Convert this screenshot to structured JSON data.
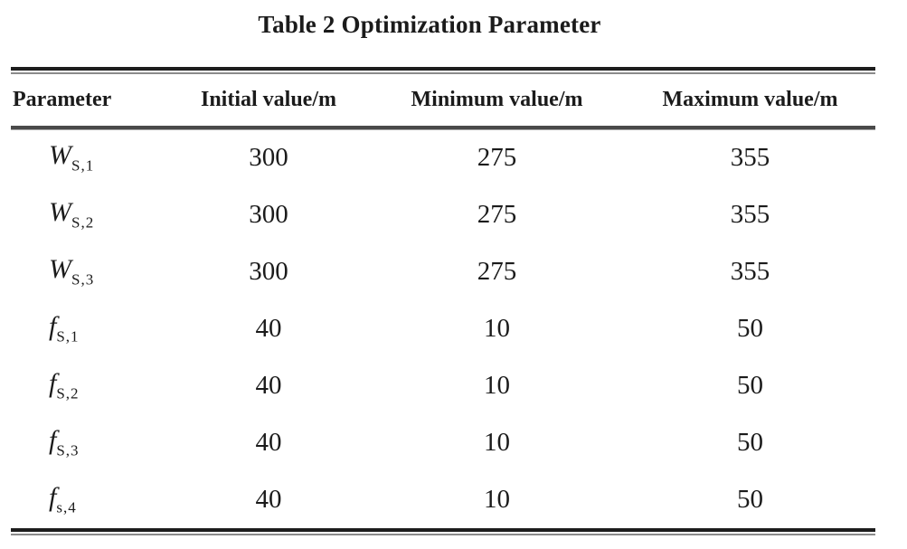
{
  "title": "Table 2 Optimization Parameter",
  "table": {
    "headers": [
      "Parameter",
      "Initial value/m",
      "Minimum value/m",
      "Maximum value/m"
    ],
    "rows": [
      {
        "symbol": "W",
        "subscript": "S,1",
        "initial": "300",
        "min": "275",
        "max": "355"
      },
      {
        "symbol": "W",
        "subscript": "S,2",
        "initial": "300",
        "min": "275",
        "max": "355"
      },
      {
        "symbol": "W",
        "subscript": "S,3",
        "initial": "300",
        "min": "275",
        "max": "355"
      },
      {
        "symbol": "f",
        "subscript": "S,1",
        "initial": "40",
        "min": "10",
        "max": "50"
      },
      {
        "symbol": "f",
        "subscript": "S,2",
        "initial": "40",
        "min": "10",
        "max": "50"
      },
      {
        "symbol": "f",
        "subscript": "S,3",
        "initial": "40",
        "min": "10",
        "max": "50"
      },
      {
        "symbol": "f",
        "subscript": "s,4",
        "initial": "40",
        "min": "10",
        "max": "50"
      }
    ]
  },
  "chart_data": {
    "type": "table",
    "title": "Table 2 Optimization Parameter",
    "columns": [
      "Parameter",
      "Initial value/m",
      "Minimum value/m",
      "Maximum value/m"
    ],
    "rows": [
      [
        "W_{S,1}",
        300,
        275,
        355
      ],
      [
        "W_{S,2}",
        300,
        275,
        355
      ],
      [
        "W_{S,3}",
        300,
        275,
        355
      ],
      [
        "f_{S,1}",
        40,
        10,
        50
      ],
      [
        "f_{S,2}",
        40,
        10,
        50
      ],
      [
        "f_{S,3}",
        40,
        10,
        50
      ],
      [
        "f_{s,4}",
        40,
        10,
        50
      ]
    ]
  },
  "colors": {
    "background": "#ffffff",
    "text": "#1b1b1b",
    "rule_dark": "#1d1d1d",
    "rule_gray": "#8b8b8b",
    "rule_mid": "#4a4a4a"
  }
}
